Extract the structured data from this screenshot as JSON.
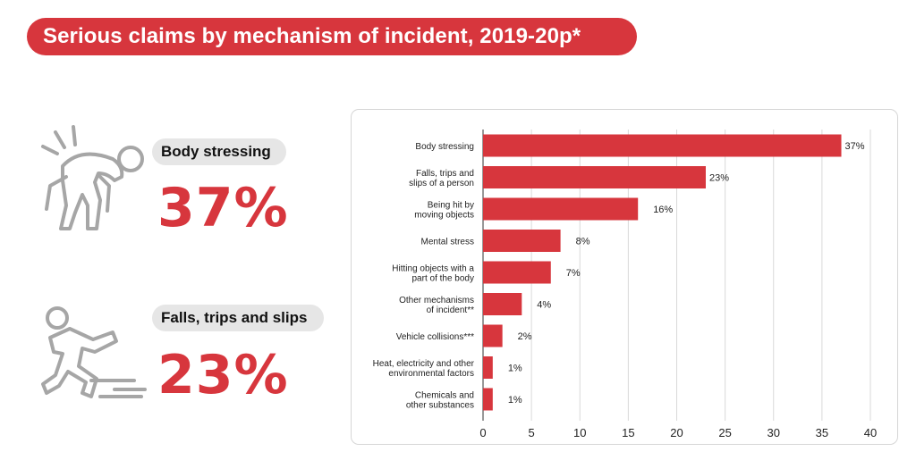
{
  "title": "Serious claims by mechanism of incident, 2019-20p*",
  "highlights": [
    {
      "label": "Body stressing",
      "value": "37%",
      "icon": "body-stressing-icon"
    },
    {
      "label": "Falls, trips and slips",
      "value": "23%",
      "icon": "falling-person-icon"
    }
  ],
  "colors": {
    "accent": "#d7363d",
    "pill": "#e6e6e6",
    "icon": "#a6a6a6",
    "grid": "#d9d9d9"
  },
  "chart_data": {
    "type": "bar",
    "orientation": "horizontal",
    "categories": [
      [
        "Body stressing"
      ],
      [
        "Falls, trips and",
        "slips of a person"
      ],
      [
        "Being hit by",
        "moving objects"
      ],
      [
        "Mental stress"
      ],
      [
        "Hitting objects with a",
        "part of the body"
      ],
      [
        "Other mechanisms",
        "of incident**"
      ],
      [
        "Vehicle collisions***"
      ],
      [
        "Heat, electricity and other",
        "environmental factors"
      ],
      [
        "Chemicals and",
        "other substances"
      ]
    ],
    "values": [
      37,
      23,
      16,
      8,
      7,
      4,
      2,
      1,
      1
    ],
    "value_labels": [
      "37%",
      "23%",
      "16%",
      "8%",
      "7%",
      "4%",
      "2%",
      "1%",
      "1%"
    ],
    "xlim": [
      0,
      40
    ],
    "xticks": [
      "0",
      "5",
      "10",
      "15",
      "20",
      "25",
      "30",
      "35",
      "40"
    ],
    "grid": "vertical",
    "bar_color": "#d7363d"
  }
}
